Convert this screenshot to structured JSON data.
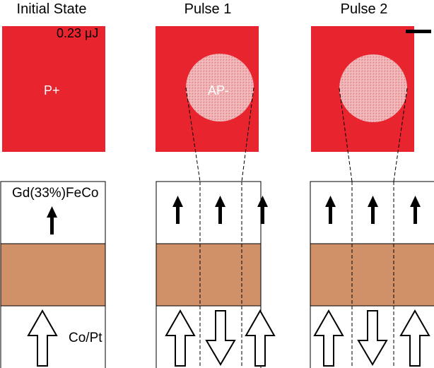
{
  "titles": {
    "initial": "Initial State",
    "pulse1": "Pulse 1",
    "pulse2": "Pulse 2"
  },
  "annotations": {
    "energy": "0.23 μJ",
    "initial_state_label": "P+",
    "pulse1_state_label": "AP-"
  },
  "layers": {
    "top": "Gd(33%)FeCo",
    "bottom": "Co/Pt"
  },
  "colors": {
    "red": "#e8242e",
    "spot": "#f0b4b6",
    "spacer": "#d09068",
    "outline": "#000000"
  }
}
